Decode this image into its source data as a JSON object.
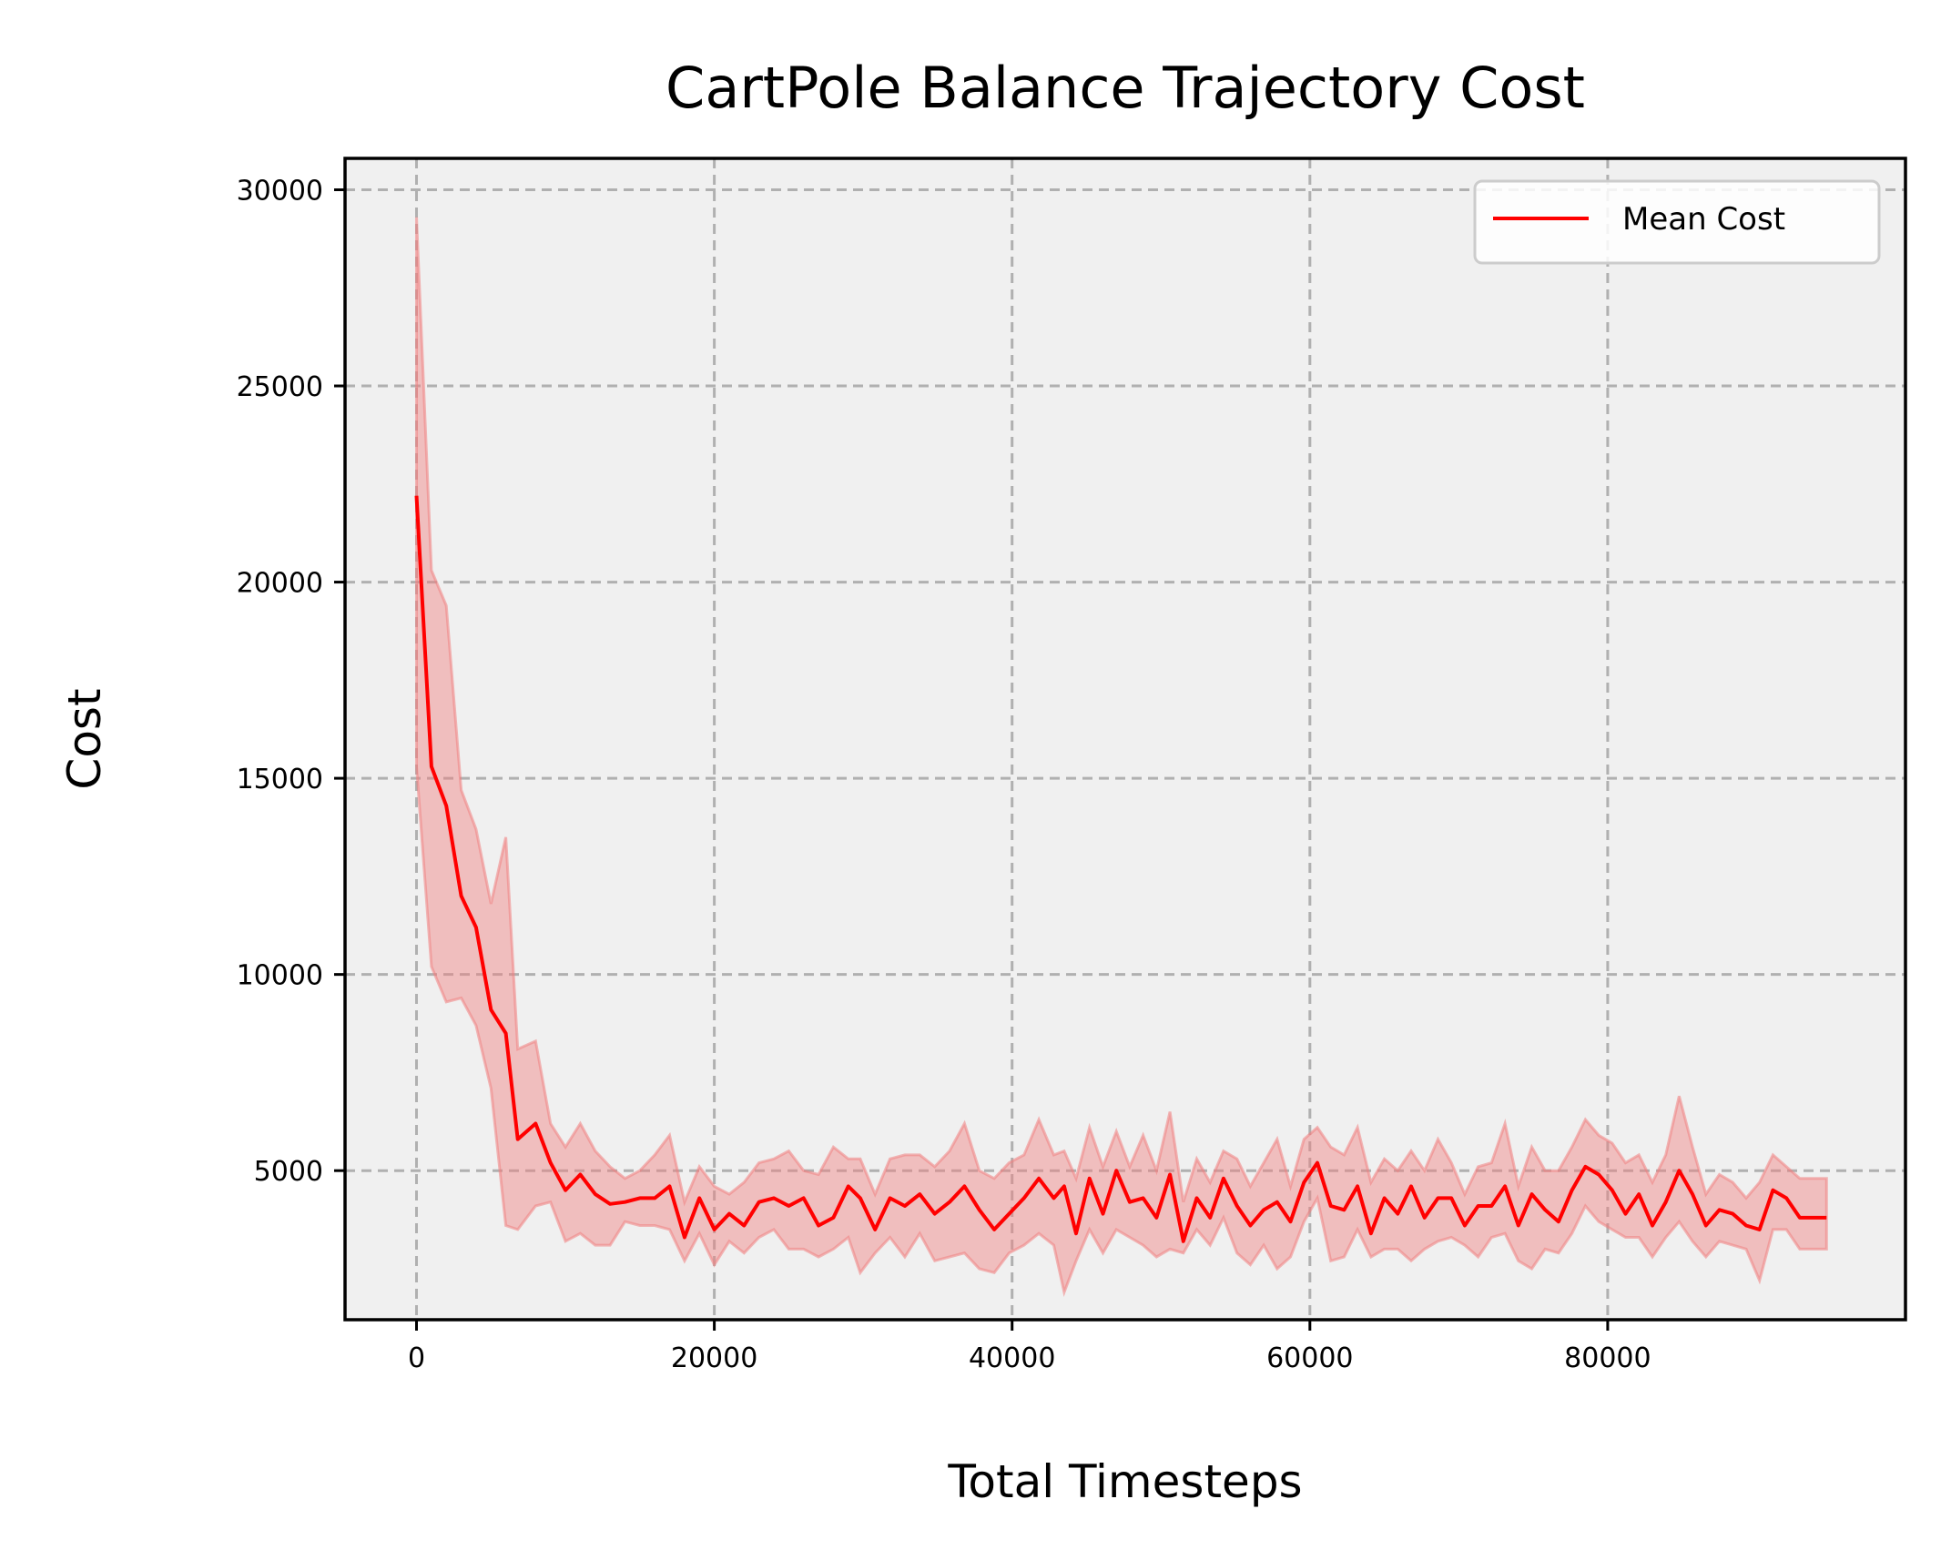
{
  "chart_data": {
    "type": "line",
    "title": "CartPole Balance Trajectory Cost",
    "xlabel": "Total Timesteps",
    "ylabel": "Cost",
    "xlim": [
      -4800,
      100000
    ],
    "ylim": [
      1200,
      30800
    ],
    "xticks": [
      0,
      20000,
      40000,
      60000,
      80000
    ],
    "yticks": [
      5000,
      10000,
      15000,
      20000,
      25000,
      30000
    ],
    "grid": true,
    "grid_style": "dashed",
    "legend_position": "top-right",
    "colors": {
      "line": "#ff0000",
      "band": "#f08080",
      "plot_background": "#f0f0f0",
      "grid": "#b0b0b0"
    },
    "series": [
      {
        "name": "Mean Cost",
        "x": [
          0,
          1000,
          2000,
          3000,
          4000,
          5000,
          6000,
          6800,
          8000,
          9000,
          10000,
          11000,
          12000,
          13000,
          14000,
          15000,
          16000,
          17000,
          18000,
          19000,
          20000,
          21000,
          22000,
          23000,
          24000,
          25000,
          26000,
          27000,
          28000,
          29000,
          29800,
          30800,
          31800,
          32800,
          33800,
          34800,
          35800,
          36800,
          37800,
          38800,
          39800,
          40800,
          41800,
          42800,
          43500,
          44300,
          45200,
          46100,
          47000,
          47900,
          48800,
          49700,
          50600,
          51500,
          52400,
          53300,
          54200,
          55100,
          56000,
          56900,
          57800,
          58700,
          59600,
          60500,
          61400,
          62300,
          63200,
          64100,
          65000,
          65900,
          66800,
          67700,
          68600,
          69500,
          70400,
          71300,
          72200,
          73100,
          74000,
          74900,
          75800,
          76700,
          77600,
          78500,
          79400,
          80300,
          81200,
          82100,
          83000,
          83900,
          84800,
          85700,
          86600,
          87500,
          88400,
          89300,
          90200,
          91100,
          92000,
          92900,
          93800,
          94700
        ],
        "mean": [
          22200,
          15300,
          14300,
          12000,
          11200,
          9100,
          8500,
          5800,
          6200,
          5200,
          4500,
          4900,
          4400,
          4150,
          4200,
          4300,
          4300,
          4600,
          3300,
          4300,
          3500,
          3900,
          3600,
          4200,
          4300,
          4100,
          4300,
          3600,
          3800,
          4600,
          4300,
          3500,
          4300,
          4100,
          4400,
          3900,
          4200,
          4600,
          4000,
          3500,
          3900,
          4300,
          4800,
          4300,
          4600,
          3400,
          4800,
          3900,
          5000,
          4200,
          4300,
          3800,
          4900,
          3200,
          4300,
          3800,
          4800,
          4100,
          3600,
          4000,
          4200,
          3700,
          4700,
          5200,
          4100,
          4000,
          4600,
          3400,
          4300,
          3900,
          4600,
          3800,
          4300,
          4300,
          3600,
          4100,
          4100,
          4600,
          3600,
          4400,
          4000,
          3700,
          4500,
          5100,
          4900,
          4500,
          3900,
          4400,
          3600,
          4200,
          5000,
          4400,
          3600,
          4000,
          3900,
          3600,
          3500,
          4500,
          4300,
          3800,
          3800,
          3800
        ],
        "lower": [
          15300,
          10200,
          9300,
          9400,
          8700,
          7100,
          3600,
          3500,
          4100,
          4200,
          3200,
          3400,
          3100,
          3100,
          3700,
          3600,
          3600,
          3500,
          2700,
          3400,
          2600,
          3200,
          2900,
          3300,
          3500,
          3000,
          3000,
          2800,
          3000,
          3300,
          2400,
          2900,
          3300,
          2800,
          3400,
          2700,
          2800,
          2900,
          2500,
          2400,
          2900,
          3100,
          3400,
          3100,
          1900,
          2700,
          3500,
          2900,
          3500,
          3300,
          3100,
          2800,
          3000,
          2900,
          3500,
          3100,
          3800,
          2900,
          2600,
          3100,
          2500,
          2800,
          3700,
          4300,
          2700,
          2800,
          3500,
          2800,
          3000,
          3000,
          2700,
          3000,
          3200,
          3300,
          3100,
          2800,
          3300,
          3400,
          2700,
          2500,
          3000,
          2900,
          3400,
          4100,
          3700,
          3500,
          3300,
          3300,
          2800,
          3300,
          3700,
          3200,
          2800,
          3200,
          3100,
          3000,
          2200,
          3500,
          3500,
          3000,
          3000,
          3000
        ],
        "upper": [
          29300,
          20300,
          19400,
          14700,
          13700,
          11800,
          13500,
          8100,
          8300,
          6200,
          5600,
          6200,
          5500,
          5100,
          4800,
          5000,
          5400,
          5900,
          4200,
          5100,
          4600,
          4400,
          4700,
          5200,
          5300,
          5500,
          5000,
          4900,
          5600,
          5300,
          5300,
          4400,
          5300,
          5400,
          5400,
          5100,
          5500,
          6200,
          5000,
          4800,
          5200,
          5400,
          6300,
          5400,
          5500,
          4800,
          6100,
          5100,
          6000,
          5100,
          5900,
          5000,
          6500,
          4200,
          5300,
          4700,
          5500,
          5300,
          4600,
          5200,
          5800,
          4600,
          5800,
          6100,
          5600,
          5400,
          6100,
          4700,
          5300,
          5000,
          5500,
          5000,
          5800,
          5200,
          4400,
          5100,
          5200,
          6200,
          4600,
          5600,
          5000,
          5000,
          5600,
          6300,
          5900,
          5700,
          5200,
          5400,
          4700,
          5400,
          6900,
          5600,
          4400,
          4900,
          4700,
          4300,
          4700,
          5400,
          5100,
          4800,
          4800,
          4800
        ]
      }
    ]
  }
}
